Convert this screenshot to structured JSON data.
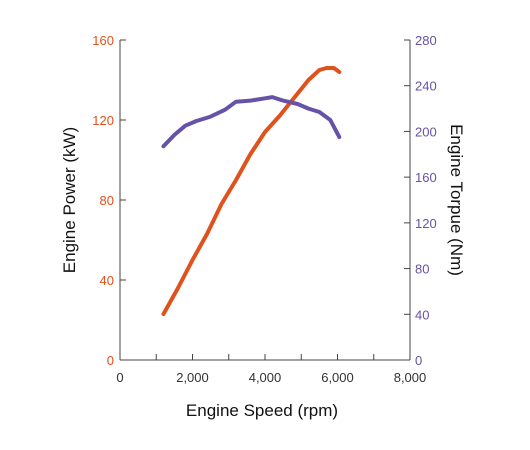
{
  "chart_data": {
    "type": "line",
    "xlabel": "Engine Speed (rpm)",
    "ylabel_left": "Engine Power (kW)",
    "ylabel_right": "Engine Torpue (Nm)",
    "xlim": [
      0,
      8000
    ],
    "ylim_left": [
      0,
      160
    ],
    "ylim_right": [
      0,
      280
    ],
    "x_ticks": [
      0,
      1000,
      2000,
      3000,
      4000,
      5000,
      6000,
      7000,
      8000
    ],
    "x_tick_labels": [
      "0",
      "2,000",
      "4,000",
      "6,000",
      "8,000"
    ],
    "x_tick_label_values": [
      0,
      2000,
      4000,
      6000,
      8000
    ],
    "y_left_ticks": [
      0,
      40,
      80,
      120,
      160
    ],
    "y_left_tick_labels": [
      "0",
      "40",
      "80",
      "120",
      "160"
    ],
    "y_right_ticks": [
      0,
      40,
      80,
      120,
      160,
      200,
      240,
      280
    ],
    "y_right_tick_labels": [
      "0",
      "40",
      "80",
      "120",
      "160",
      "200",
      "240",
      "280"
    ],
    "grid": false,
    "colors": {
      "power": "#e0521c",
      "torque": "#6652a6",
      "axis": "#444444"
    },
    "series": [
      {
        "axis": "left",
        "color": "#e0521c",
        "x": [
          1200,
          1600,
          2000,
          2400,
          2800,
          3200,
          3600,
          4000,
          4400,
          4800,
          5200,
          5500,
          5700,
          5900,
          6050
        ],
        "values": [
          23,
          36,
          50,
          63,
          78,
          90,
          103,
          114,
          122,
          131,
          140,
          145,
          146,
          146,
          144
        ]
      },
      {
        "axis": "right",
        "color": "#6652a6",
        "x": [
          1200,
          1500,
          1800,
          2100,
          2500,
          2900,
          3200,
          3600,
          4000,
          4200,
          4500,
          4900,
          5200,
          5500,
          5800,
          6050
        ],
        "values": [
          187,
          197,
          205,
          209,
          213,
          219,
          226,
          227,
          229,
          230,
          227,
          224,
          220,
          217,
          210,
          195
        ]
      }
    ]
  }
}
